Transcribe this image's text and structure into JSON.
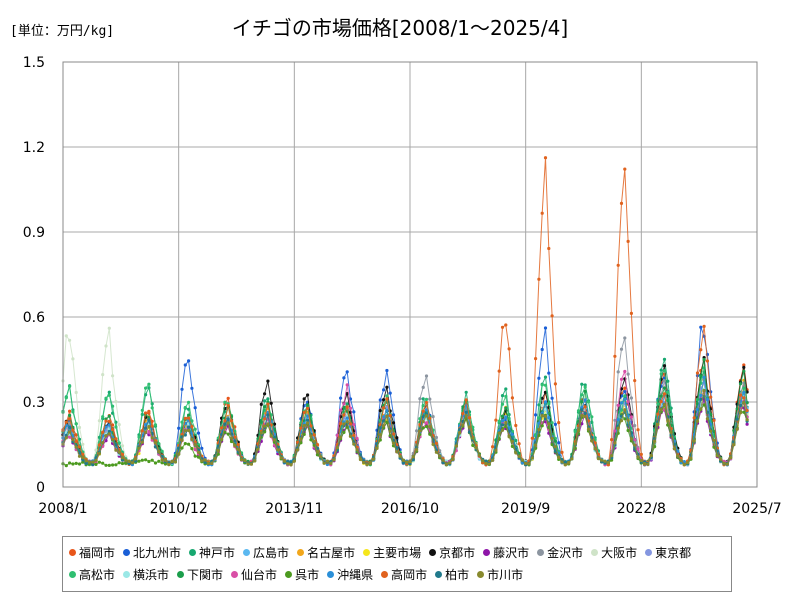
{
  "chart_data": {
    "type": "line",
    "title": "イチゴの市場価格[2008/1～2025/4]",
    "unit_label": "[単位：万円/kg]",
    "xlabel": "",
    "ylabel": "",
    "x_start": "2008/1",
    "x_end": "2025/7",
    "xticks": [
      "2008/1",
      "2010/12",
      "2013/11",
      "2016/10",
      "2019/9",
      "2022/8",
      "2025/7"
    ],
    "yticks": [
      0,
      0.3,
      0.6,
      0.9,
      1.2,
      1.5
    ],
    "ytick_labels": [
      "0",
      "0.3",
      "0.6",
      "0.9",
      "1.2",
      "1.5"
    ],
    "ylim": [
      0,
      1.5
    ],
    "grid": true,
    "legend_position": "bottom",
    "annual_peak_months": [
      "2009/3",
      "2010/3",
      "2011/2",
      "2012/3",
      "2013/3",
      "2014/2",
      "2015/3",
      "2016/3",
      "2017/3",
      "2018/3",
      "2019/3",
      "2020/3",
      "2021/3",
      "2022/3",
      "2023/3",
      "2024/3",
      "2025/3"
    ],
    "series": [
      {
        "name": "福岡市",
        "color": "#e8561b",
        "peaks": [
          0.26,
          0.28,
          0.24,
          0.31,
          0.27,
          0.25,
          0.29,
          0.3,
          0.27,
          0.28,
          0.26,
          0.33,
          0.31,
          0.34,
          0.38,
          0.44,
          0.4
        ]
      },
      {
        "name": "北九州市",
        "color": "#1a5fd6",
        "peaks": [
          0.22,
          0.24,
          0.46,
          0.25,
          0.28,
          0.3,
          0.41,
          0.39,
          0.3,
          0.27,
          0.25,
          0.54,
          0.3,
          0.35,
          0.4,
          0.57,
          0.38
        ]
      },
      {
        "name": "神戸市",
        "color": "#17a870",
        "peaks": [
          0.34,
          0.35,
          0.28,
          0.3,
          0.31,
          0.3,
          0.28,
          0.3,
          0.31,
          0.32,
          0.33,
          0.37,
          0.38,
          0.3,
          0.45,
          0.42,
          0.35
        ]
      },
      {
        "name": "広島市",
        "color": "#5bb8f0",
        "peaks": [
          0.2,
          0.22,
          0.22,
          0.24,
          0.25,
          0.23,
          0.24,
          0.26,
          0.26,
          0.25,
          0.24,
          0.26,
          0.28,
          0.29,
          0.3,
          0.34,
          0.32
        ]
      },
      {
        "name": "名古屋市",
        "color": "#f2a71b",
        "peaks": [
          0.22,
          0.24,
          0.23,
          0.25,
          0.27,
          0.26,
          0.27,
          0.28,
          0.27,
          0.28,
          0.27,
          0.29,
          0.3,
          0.31,
          0.33,
          0.38,
          0.35
        ]
      },
      {
        "name": "主要市場",
        "color": "#f5e61c",
        "peaks": [
          0.2,
          0.21,
          0.21,
          0.22,
          0.23,
          0.23,
          0.24,
          0.25,
          0.25,
          0.25,
          0.25,
          0.26,
          0.27,
          0.28,
          0.3,
          0.34,
          0.31
        ]
      },
      {
        "name": "京都市",
        "color": "#111111",
        "peaks": [
          0.23,
          0.25,
          0.24,
          0.3,
          0.37,
          0.31,
          0.31,
          0.35,
          0.28,
          0.28,
          0.27,
          0.33,
          0.31,
          0.39,
          0.42,
          0.46,
          0.41
        ]
      },
      {
        "name": "藤沢市",
        "color": "#8e16a8",
        "peaks": [
          0.18,
          0.2,
          0.2,
          0.21,
          0.22,
          0.21,
          0.22,
          0.23,
          0.23,
          0.23,
          0.22,
          0.24,
          0.25,
          0.26,
          0.28,
          0.31,
          0.29
        ]
      },
      {
        "name": "金沢市",
        "color": "#8c95a0",
        "peaks": [
          0.21,
          0.22,
          0.22,
          0.23,
          0.24,
          0.26,
          0.25,
          0.27,
          0.41,
          0.26,
          0.25,
          0.28,
          0.3,
          0.53,
          0.36,
          0.4,
          0.34
        ]
      },
      {
        "name": "大阪市",
        "color": "#cfe3c8",
        "peaks": [
          0.54,
          0.25,
          0.24,
          0.26,
          0.27,
          0.26,
          0.27,
          0.28,
          0.28,
          0.27,
          0.27,
          0.29,
          0.3,
          0.31,
          0.33,
          0.37,
          0.34
        ]
      },
      {
        "name": "東京都",
        "color": "#8496e0",
        "peaks": [
          0.21,
          0.23,
          0.22,
          0.24,
          0.25,
          0.24,
          0.26,
          0.27,
          0.26,
          0.27,
          0.26,
          0.28,
          0.29,
          0.3,
          0.32,
          0.37,
          0.34
        ]
      },
      {
        "name": "高松市",
        "color": "#2fbf71",
        "peaks": [
          0.33,
          0.36,
          0.3,
          0.31,
          0.3,
          0.29,
          0.27,
          0.3,
          0.3,
          0.31,
          0.3,
          0.36,
          0.38,
          0.31,
          0.42,
          0.4,
          0.33
        ]
      },
      {
        "name": "横浜市",
        "color": "#9be8e6",
        "peaks": [
          0.2,
          0.22,
          0.21,
          0.23,
          0.24,
          0.23,
          0.24,
          0.25,
          0.25,
          0.25,
          0.24,
          0.26,
          0.27,
          0.28,
          0.3,
          0.33,
          0.3
        ]
      },
      {
        "name": "下関市",
        "color": "#1b9e4b",
        "peaks": [
          0.24,
          0.26,
          0.25,
          0.28,
          0.3,
          0.27,
          0.28,
          0.29,
          0.28,
          0.29,
          0.28,
          0.31,
          0.32,
          0.33,
          0.36,
          0.42,
          0.38
        ]
      },
      {
        "name": "仙台市",
        "color": "#d94fa6",
        "peaks": [
          0.19,
          0.21,
          0.2,
          0.22,
          0.23,
          0.22,
          0.34,
          0.24,
          0.24,
          0.24,
          0.23,
          0.25,
          0.26,
          0.41,
          0.29,
          0.32,
          0.29
        ]
      },
      {
        "name": "呉市",
        "color": "#4c9a1f",
        "peaks": [
          0.08,
          0.09,
          0.15,
          0.2,
          0.22,
          0.21,
          0.22,
          0.23,
          0.23,
          0.23,
          0.22,
          0.24,
          0.25,
          0.26,
          0.28,
          0.31,
          0.28
        ]
      },
      {
        "name": "沖縄県",
        "color": "#2a8fd8",
        "peaks": [
          0.22,
          0.24,
          0.23,
          0.25,
          0.26,
          0.25,
          0.26,
          0.27,
          0.27,
          0.27,
          0.26,
          0.28,
          0.29,
          0.3,
          0.32,
          0.36,
          0.33
        ]
      },
      {
        "name": "高岡市",
        "color": "#e0621e",
        "peaks": [
          0.25,
          0.26,
          0.25,
          0.27,
          0.28,
          0.27,
          0.28,
          0.29,
          0.29,
          0.29,
          0.58,
          1.08,
          0.3,
          1.08,
          0.33,
          0.55,
          0.34
        ]
      },
      {
        "name": "柏市",
        "color": "#217a8c",
        "peaks": [
          0.2,
          0.22,
          0.21,
          0.23,
          0.24,
          0.23,
          0.24,
          0.25,
          0.25,
          0.25,
          0.24,
          0.26,
          0.27,
          0.28,
          0.3,
          0.33,
          0.3
        ]
      },
      {
        "name": "市川市",
        "color": "#888a2e",
        "peaks": [
          0.19,
          0.21,
          0.2,
          0.22,
          0.23,
          0.22,
          0.23,
          0.24,
          0.24,
          0.24,
          0.23,
          0.25,
          0.26,
          0.27,
          0.29,
          0.32,
          0.29
        ]
      }
    ]
  }
}
